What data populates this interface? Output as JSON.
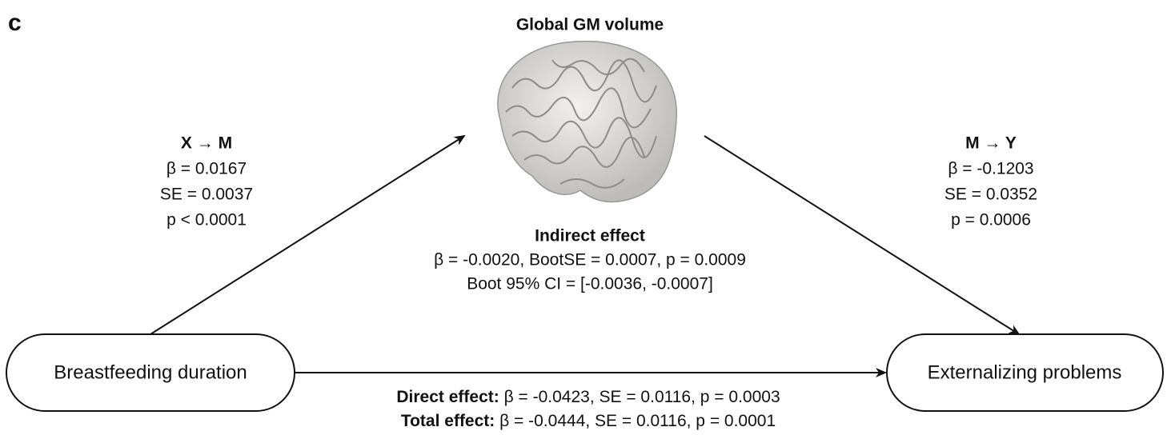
{
  "panel_label": "c",
  "mediator": {
    "title": "Global GM volume"
  },
  "path_a": {
    "title": "X → M",
    "lines": [
      "β = 0.0167",
      "SE = 0.0037",
      "p < 0.0001"
    ]
  },
  "path_b": {
    "title": "M → Y",
    "lines": [
      "β = -0.1203",
      "SE = 0.0352",
      "p = 0.0006"
    ]
  },
  "indirect": {
    "title": "Indirect effect",
    "lines": [
      "β = -0.0020, BootSE = 0.0007, p = 0.0009",
      "Boot 95% CI = [-0.0036, -0.0007]"
    ]
  },
  "nodes": [
    {
      "label": "Breastfeeding duration"
    },
    {
      "label": "Externalizing problems"
    }
  ],
  "direct": {
    "label": "Direct effect:",
    "text": " β = -0.0423, SE = 0.0116, p = 0.0003"
  },
  "total": {
    "label": "Total effect:",
    "text": " β = -0.0444, SE = 0.0116, p = 0.0001"
  }
}
